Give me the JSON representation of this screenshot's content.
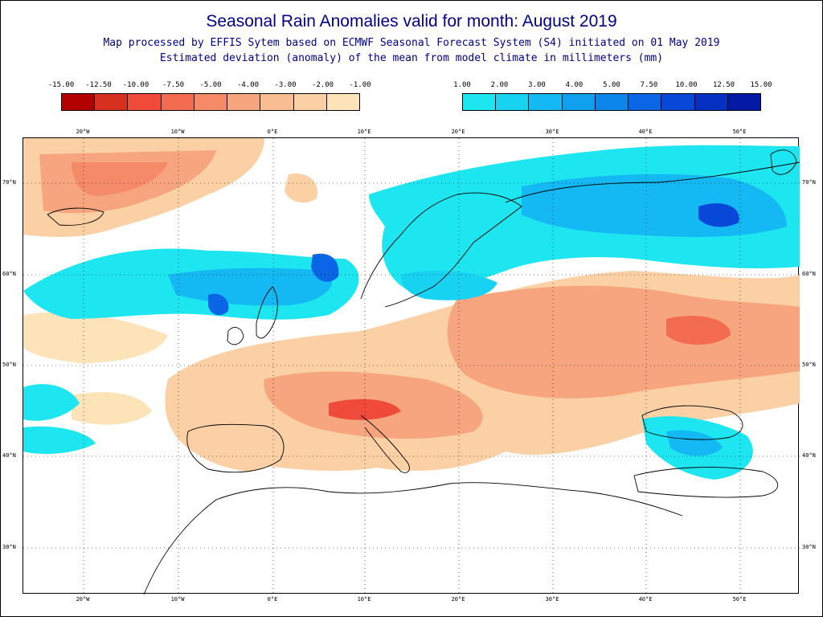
{
  "title": "Seasonal Rain Anomalies valid for month: August 2019",
  "subtitle_line1": "Map processed by EFFIS Sytem based on ECMWF Seasonal Forecast System (S4) initiated on 01 May 2019",
  "subtitle_line2": "Estimated deviation (anomaly) of the mean from model climate in millimeters (mm)",
  "legend_negative": {
    "labels": [
      "-15.00",
      "-12.50",
      "-10.00",
      "-7.50",
      "-5.00",
      "-4.00",
      "-3.00",
      "-2.00",
      "-1.00"
    ],
    "colors": [
      "#b30000",
      "#d7301f",
      "#ef4a3a",
      "#f36b50",
      "#f58a68",
      "#f7a57e",
      "#f9bd92",
      "#fbd0a4",
      "#fde3b8"
    ]
  },
  "legend_positive": {
    "labels": [
      "1.00",
      "2.00",
      "3.00",
      "4.00",
      "5.00",
      "7.50",
      "10.00",
      "12.50",
      "15.00"
    ],
    "colors": [
      "#1ee6f0",
      "#18d2f2",
      "#14b8f2",
      "#10a0ee",
      "#0c86ea",
      "#0a66e4",
      "#0848d8",
      "#0630c2",
      "#041aa4"
    ]
  },
  "longitude_labels": [
    "20°W",
    "10°W",
    "0°E",
    "10°E",
    "20°E",
    "30°E",
    "40°E",
    "50°E"
  ],
  "latitude_labels": [
    "70°N",
    "60°N",
    "50°N",
    "40°N",
    "30°N"
  ]
}
